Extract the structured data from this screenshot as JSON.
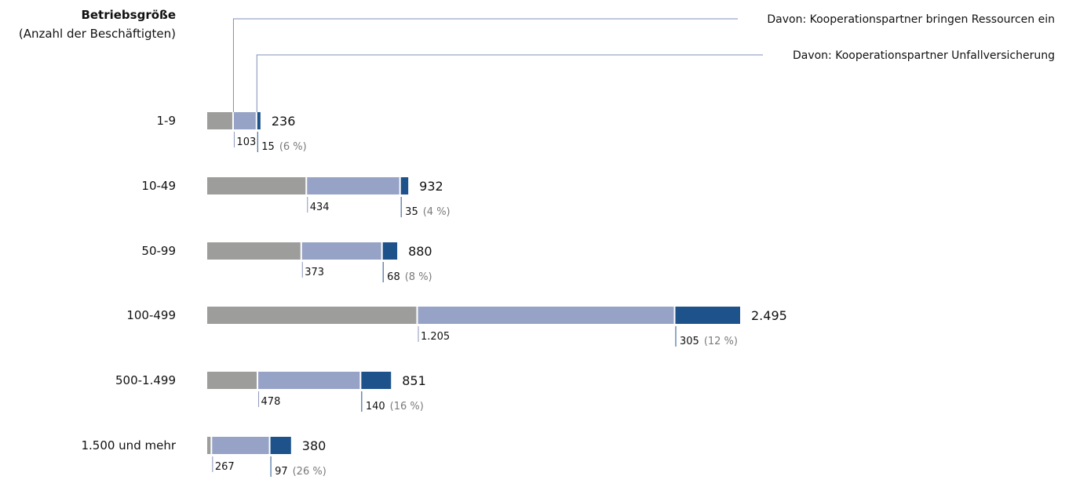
{
  "chart_data": {
    "type": "bar",
    "stacked": true,
    "y_title": "Betriebsgröße",
    "y_subtitle": "(Anzahl der Beschäftigten)",
    "legend": [
      {
        "key": "ressourcen",
        "label": "Davon: Kooperationspartner bringen Ressourcen ein",
        "color": "#97A3C6"
      },
      {
        "key": "unfall",
        "label": "Davon: Kooperationspartner Unfallversicherung",
        "color": "#1E528B"
      }
    ],
    "total_color": "#9D9D9C",
    "percent_color": "#7A7A7A",
    "categories": [
      "1-9",
      "10-49",
      "50-99",
      "100-499",
      "500-1.499",
      "1.500 und mehr"
    ],
    "totals": [
      236,
      932,
      880,
      2495,
      851,
      380
    ],
    "total_labels": [
      "236",
      "932",
      "880",
      "2.495",
      "851",
      "380"
    ],
    "ressourcen": [
      103,
      434,
      373,
      1205,
      478,
      267
    ],
    "ressourcen_labels": [
      "103",
      "434",
      "373",
      "1.205",
      "478",
      "267"
    ],
    "unfall": [
      15,
      35,
      68,
      305,
      140,
      97
    ],
    "unfall_labels": [
      "15",
      "35",
      "68",
      "305",
      "140",
      "97"
    ],
    "unfall_pct": [
      "(6 %)",
      "(4 %)",
      "(8 %)",
      "(12 %)",
      "(16 %)",
      "(26 %)"
    ]
  }
}
